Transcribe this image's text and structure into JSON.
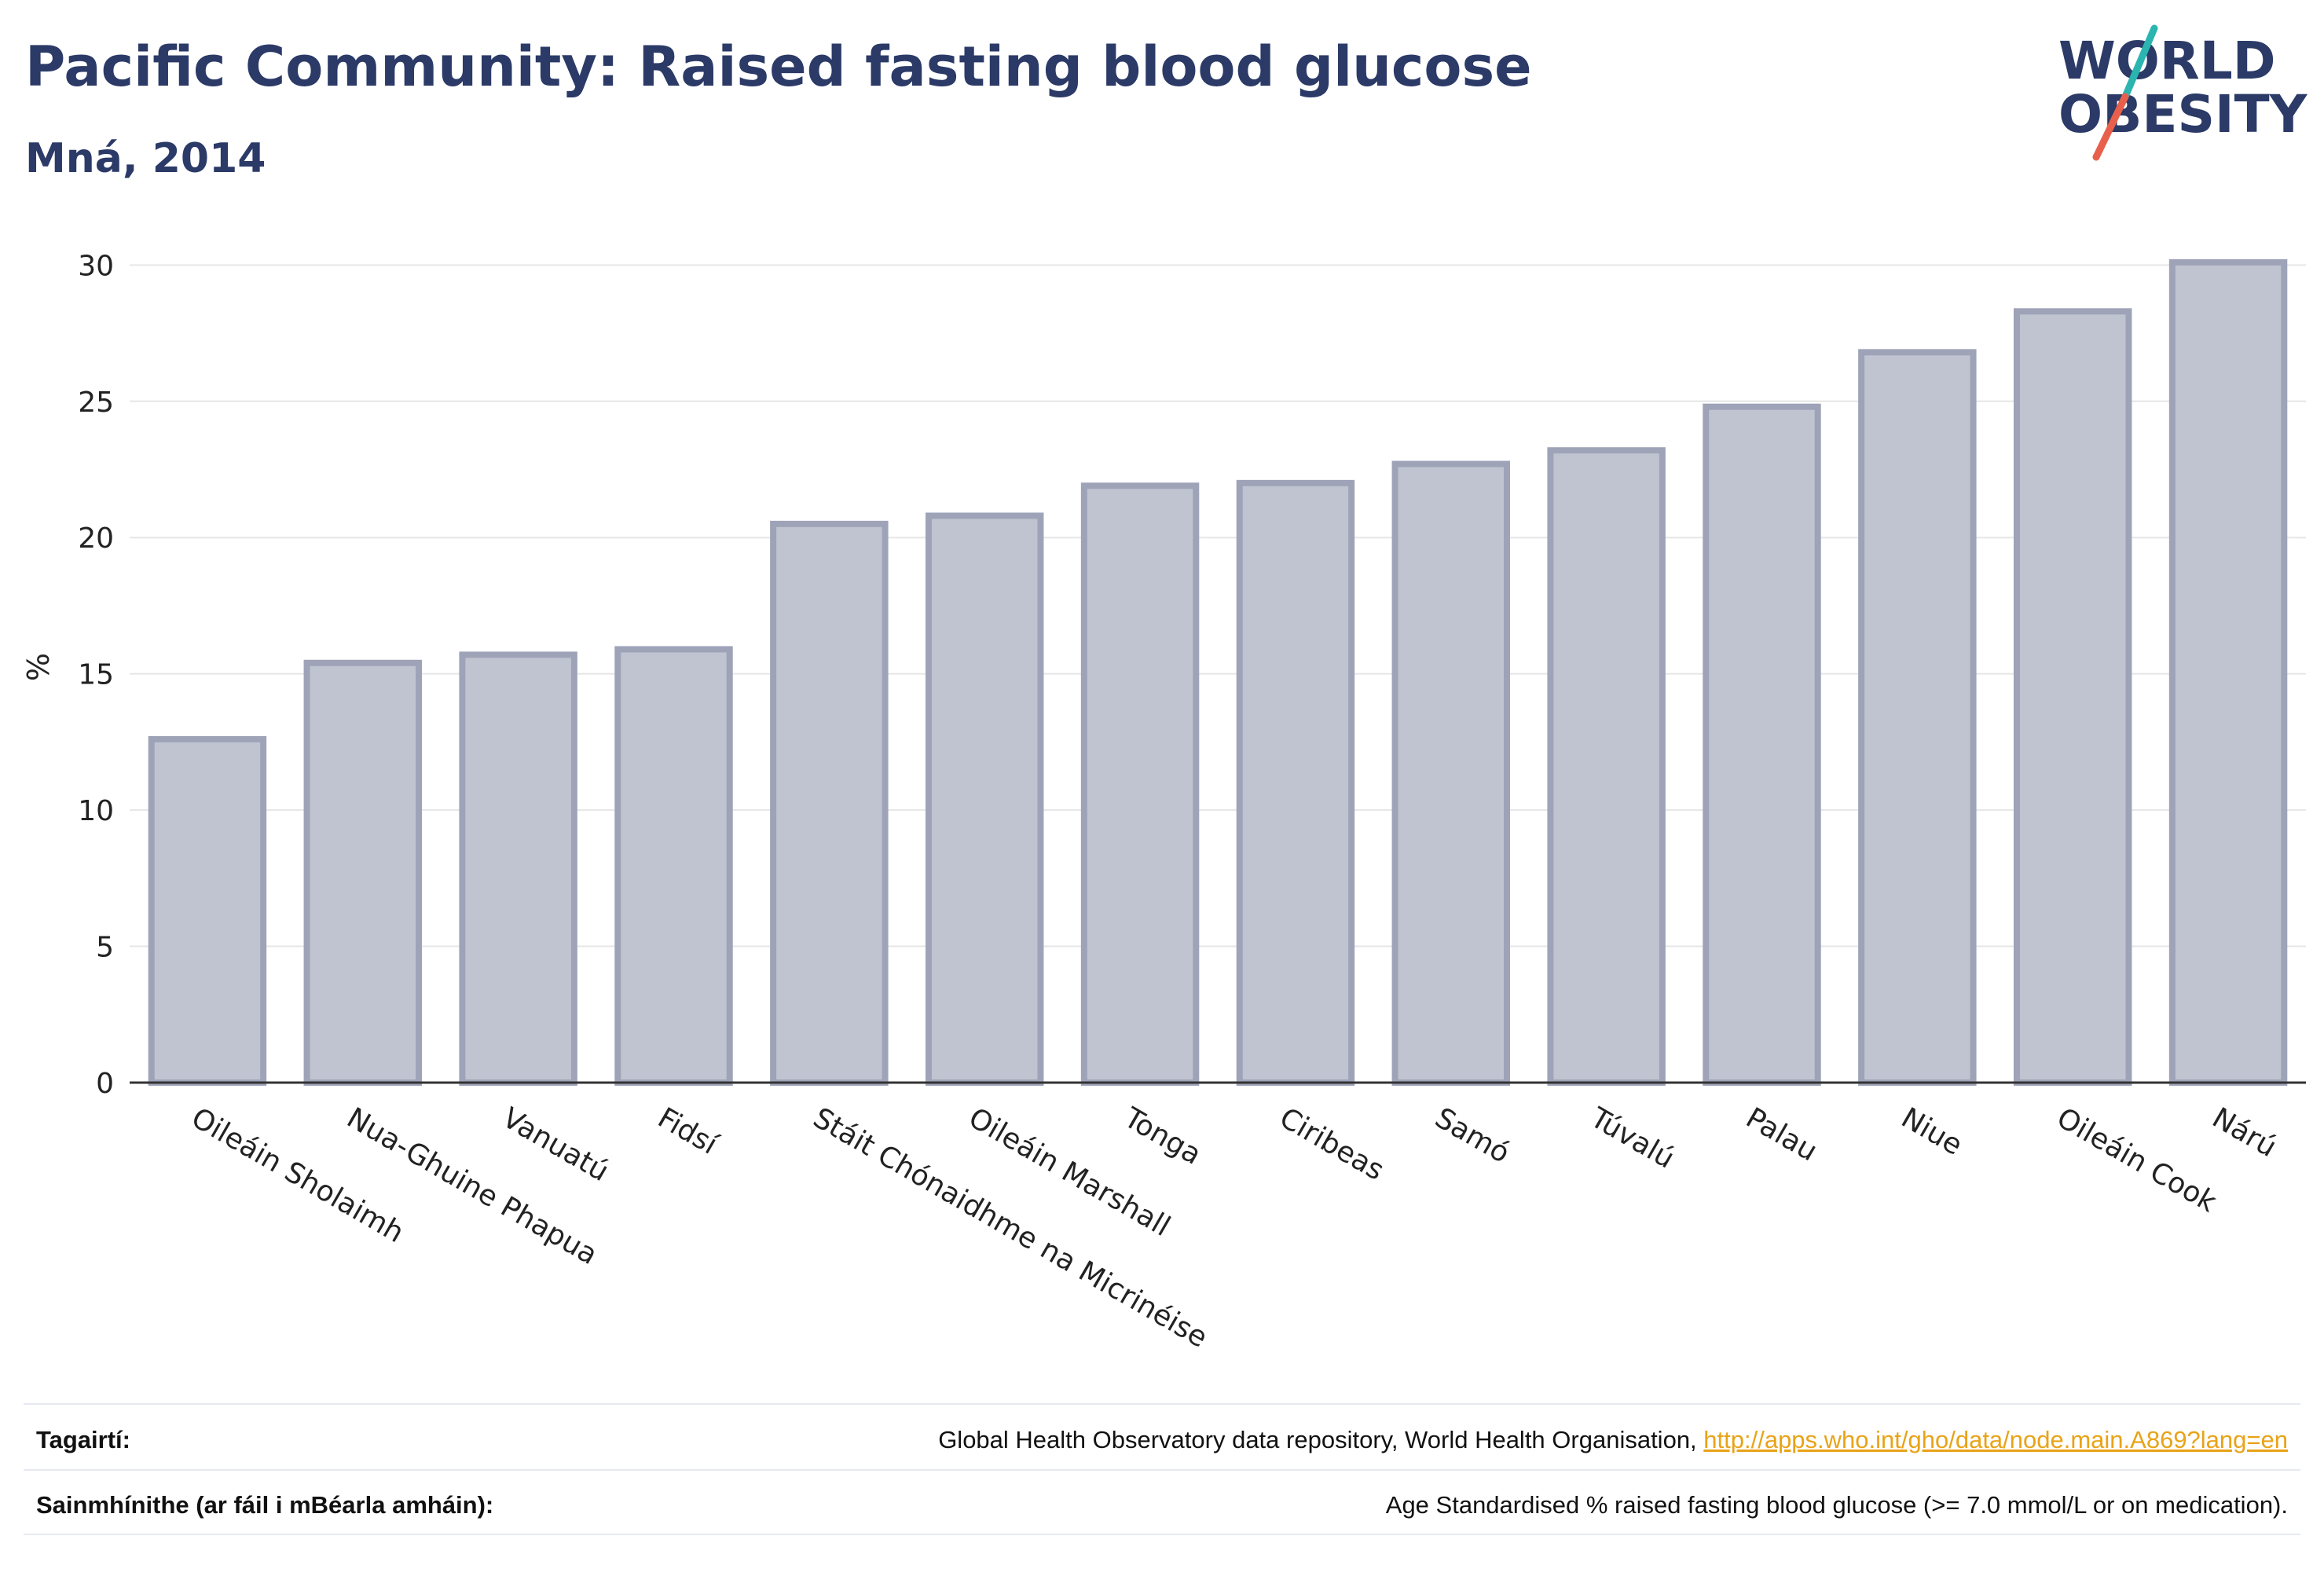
{
  "header": {
    "title": "Pacific Community: Raised fasting blood glucose",
    "subtitle": "Mná, 2014"
  },
  "logo": {
    "line1": "WORLD",
    "line2": "OBESITY",
    "accent_teal": "#2bb5b0",
    "accent_red": "#e8604c",
    "text_color": "#2b3a67"
  },
  "chart_data": {
    "type": "bar",
    "categories": [
      "Oileáin Sholaimh",
      "Nua-Ghuine Phapua",
      "Vanuatú",
      "Fidsí",
      "Stáit Chónaidhme na Micrinéise",
      "Oileáin Marshall",
      "Tonga",
      "Ciribeas",
      "Samó",
      "Túvalú",
      "Palau",
      "Niue",
      "Oileáin Cook",
      "Nárú"
    ],
    "values": [
      12.6,
      15.4,
      15.7,
      15.9,
      20.5,
      20.8,
      21.9,
      22.0,
      22.7,
      23.2,
      24.8,
      26.8,
      28.3,
      30.1
    ],
    "ylabel": "%",
    "xlabel": "",
    "ylim": [
      0,
      30.5
    ],
    "yticks": [
      0,
      5,
      10,
      15,
      20,
      25,
      30
    ],
    "grid": true,
    "bar_fill": "#c0c4d0",
    "bar_stroke": "#9ea3b8",
    "axis_color": "#333333"
  },
  "footer": {
    "references_label": "Tagairtí:",
    "references_text": "Global Health Observatory data repository, World Health Organisation, ",
    "references_link": "http://apps.who.int/gho/data/node.main.A869?lang=en",
    "definitions_label": "Sainmhínithe (ar fáil i mBéarla amháin):",
    "definitions_text": "Age Standardised % raised fasting blood glucose (>= 7.0 mmol/L or on medication)."
  }
}
